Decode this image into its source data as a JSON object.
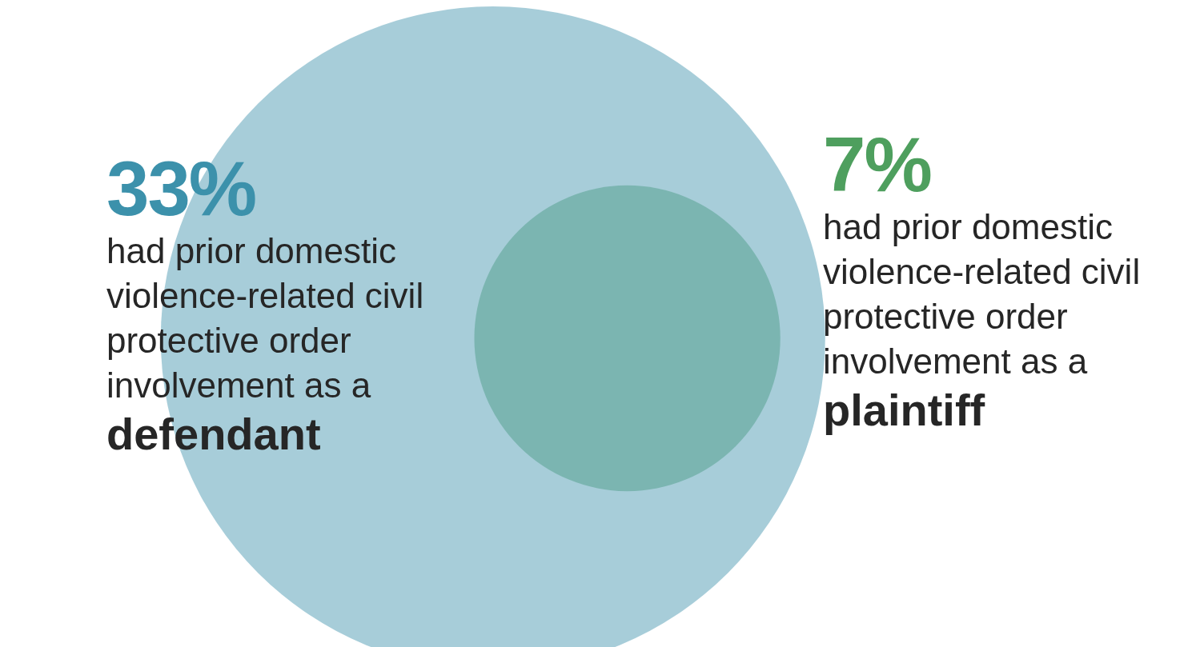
{
  "chart_data": {
    "type": "other",
    "categories": [
      "defendant",
      "plaintiff"
    ],
    "values": [
      33,
      7
    ],
    "value_labels": [
      "33%",
      "7%"
    ],
    "colors": [
      "#3c91ab",
      "#4e9f5e"
    ],
    "annotations": [
      "had prior domestic violence-related civil protective order involvement as a",
      "had prior domestic violence-related civil protective order involvement as a"
    ]
  }
}
